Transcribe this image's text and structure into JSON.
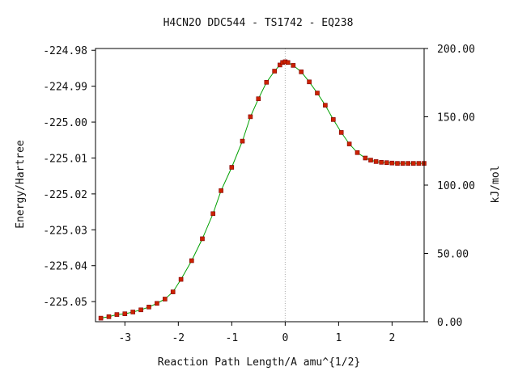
{
  "chart_data": {
    "type": "line",
    "title": "H4CN2O   DDC544 - TS1742 - EQ238",
    "xlabel": "Reaction Path Length/A amu^{1/2}",
    "ylabel": "Energy/Hartree",
    "y2label": "kJ/mol",
    "xlim": [
      -3.55,
      2.6
    ],
    "ylim": [
      -225.0556,
      -224.9795
    ],
    "y2lim": [
      0.0,
      200.0
    ],
    "grid": false,
    "legend": "none",
    "x_ticks": [
      -3,
      -2,
      -1,
      0,
      1,
      2
    ],
    "x_tick_labels": [
      "-3",
      "-2",
      "-1",
      "0",
      "1",
      "2"
    ],
    "y_ticks": [
      -224.98,
      -224.99,
      -225.0,
      -225.01,
      -225.02,
      -225.03,
      -225.04,
      -225.05
    ],
    "y_tick_labels": [
      "-224.98",
      "-224.99",
      "-225.00",
      "-225.01",
      "-225.02",
      "-225.03",
      "-225.04",
      "-225.05"
    ],
    "y2_ticks": [
      200.0,
      150.0,
      100.0,
      50.0,
      0.0
    ],
    "y2_tick_labels": [
      "200.00",
      "150.00",
      "100.00",
      "50.00",
      "0.00"
    ],
    "ts_marker_x": 0,
    "colors": {
      "line": "#00a000",
      "marker_fill": "#cc2200",
      "marker_edge": "#800000",
      "ts_line": "#aaaaaa",
      "axis": "#000000"
    },
    "series": [
      {
        "x": [
          -3.45,
          -3.3,
          -3.15,
          -3.0,
          -2.85,
          -2.7,
          -2.55,
          -2.4,
          -2.25,
          -2.1,
          -1.95,
          -1.75,
          -1.55,
          -1.35,
          -1.2,
          -1.0,
          -0.8,
          -0.65,
          -0.5,
          -0.35,
          -0.2,
          -0.1,
          -0.05,
          0.0,
          0.05,
          0.15,
          0.3,
          0.45,
          0.6,
          0.75,
          0.9,
          1.05,
          1.2,
          1.35,
          1.5,
          1.6,
          1.7,
          1.8,
          1.9,
          2.0,
          2.1,
          2.2,
          2.3,
          2.4,
          2.5,
          2.6
        ],
        "y": [
          -225.0546,
          -225.0542,
          -225.0536,
          -225.0534,
          -225.0529,
          -225.0523,
          -225.0515,
          -225.0505,
          -225.0493,
          -225.0473,
          -225.0438,
          -225.0386,
          -225.0325,
          -225.0255,
          -225.0191,
          -225.0126,
          -225.0053,
          -224.9985,
          -224.9935,
          -224.9889,
          -224.9858,
          -224.9841,
          -224.9834,
          -224.9832,
          -224.9834,
          -224.9842,
          -224.986,
          -224.9888,
          -224.9919,
          -224.9953,
          -224.9993,
          -225.0029,
          -225.0061,
          -225.0085,
          -225.01,
          -225.0106,
          -225.011,
          -225.0112,
          -225.0113,
          -225.0114,
          -225.0115,
          -225.0115,
          -225.0115,
          -225.0115,
          -225.0115,
          -225.0115
        ]
      }
    ]
  }
}
